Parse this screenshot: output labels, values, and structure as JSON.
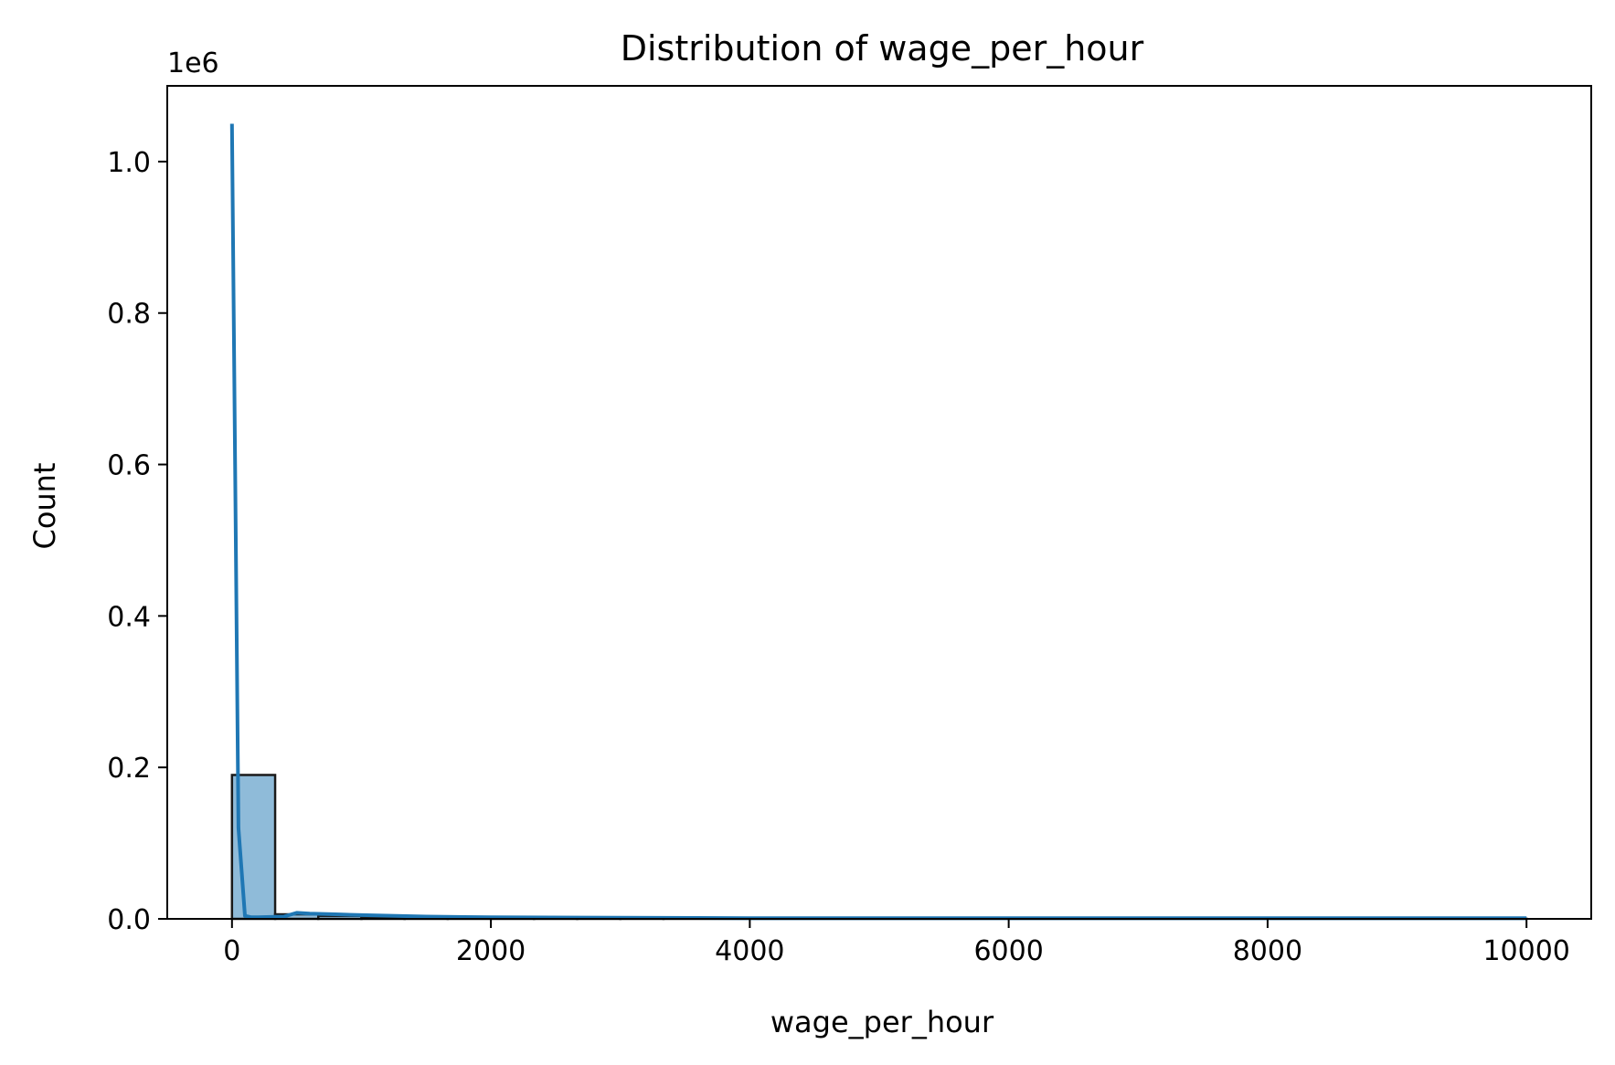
{
  "chart_data": {
    "type": "histogram",
    "title": "Distribution of wage_per_hour",
    "xlabel": "wage_per_hour",
    "ylabel": "Count",
    "y_offset_text": "1e6",
    "xlim": [
      -500,
      10500
    ],
    "ylim": [
      0,
      1.1
    ],
    "y_scale_note": "values in millions (1e6)",
    "x_ticks": [
      0,
      2000,
      4000,
      6000,
      8000,
      10000
    ],
    "x_tick_labels": [
      "0",
      "2000",
      "4000",
      "6000",
      "8000",
      "10000"
    ],
    "y_ticks": [
      0.0,
      0.2,
      0.4,
      0.6,
      0.8,
      1.0
    ],
    "y_tick_labels": [
      "0.0",
      "0.2",
      "0.4",
      "0.6",
      "0.8",
      "1.0"
    ],
    "bin_width": 333.33,
    "bins": [
      {
        "x0": 0,
        "x1": 333.33,
        "count": 0.19
      },
      {
        "x0": 333.33,
        "x1": 666.67,
        "count": 0.006
      },
      {
        "x0": 666.67,
        "x1": 1000,
        "count": 0.004
      },
      {
        "x0": 1000,
        "x1": 1333.33,
        "count": 0.002
      },
      {
        "x0": 1333.33,
        "x1": 1666.67,
        "count": 0.001
      },
      {
        "x0": 1666.67,
        "x1": 2000,
        "count": 0.0008
      },
      {
        "x0": 2000,
        "x1": 2333.33,
        "count": 0.0005
      },
      {
        "x0": 2333.33,
        "x1": 2666.67,
        "count": 0.0003
      },
      {
        "x0": 2666.67,
        "x1": 3000,
        "count": 0.0002
      },
      {
        "x0": 3000,
        "x1": 3333.33,
        "count": 0.0001
      },
      {
        "x0": 3333.33,
        "x1": 10000,
        "count": 0.0001
      }
    ],
    "kde": {
      "x": [
        0,
        50,
        100,
        150,
        200,
        400,
        500,
        600,
        800,
        1000,
        1500,
        2000,
        4000,
        6000,
        8000,
        10000
      ],
      "y": [
        1.05,
        0.12,
        0.004,
        0.002,
        0.002,
        0.003,
        0.008,
        0.007,
        0.006,
        0.005,
        0.003,
        0.002,
        0.001,
        0.001,
        0.001,
        0.001
      ]
    },
    "colors": {
      "bar_fill": "#8fbbd9",
      "bar_edge": "#1a1a1a",
      "kde_line": "#1f77b4",
      "axis": "#000000"
    },
    "grid": false,
    "legend": "none"
  }
}
